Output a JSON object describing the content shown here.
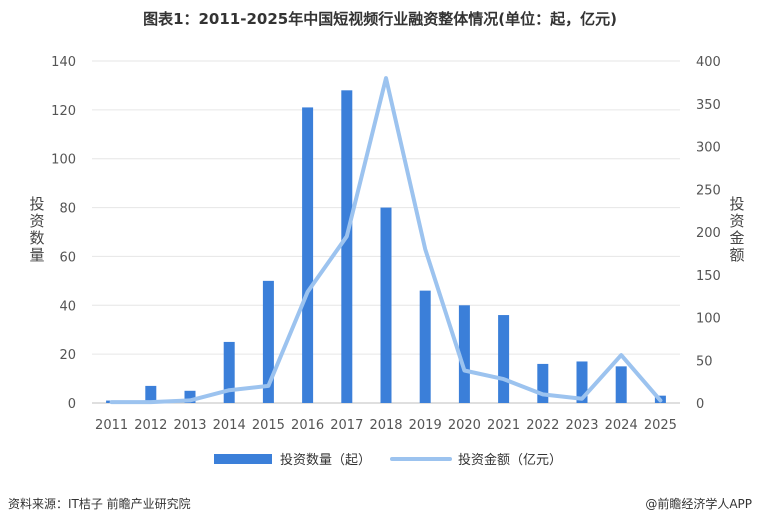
{
  "title": "图表1：2011-2025年中国短视频行业融资整体情况(单位：起，亿元)",
  "footer": {
    "source": "资料来源：IT桔子 前瞻产业研究院",
    "brand": "@前瞻经济学人APP"
  },
  "colors": {
    "bar": "#3b7fd9",
    "line": "#9cc3ef",
    "grid": "#e6e6e6",
    "axis_text": "#555555"
  },
  "chart_data": {
    "type": "bar",
    "categories": [
      "2011",
      "2012",
      "2013",
      "2014",
      "2015",
      "2016",
      "2017",
      "2018",
      "2019",
      "2020",
      "2021",
      "2022",
      "2023",
      "2024",
      "2025"
    ],
    "series": [
      {
        "name": "投资数量（起）",
        "type": "bar",
        "axis": "left",
        "values": [
          1,
          7,
          5,
          25,
          50,
          121,
          128,
          80,
          46,
          40,
          36,
          16,
          17,
          15,
          3
        ]
      },
      {
        "name": "投资金额（亿元）",
        "type": "line",
        "axis": "right",
        "values": [
          1,
          1,
          3,
          15,
          20,
          130,
          195,
          380,
          180,
          38,
          28,
          10,
          5,
          56,
          3
        ]
      }
    ],
    "ylabel": "投资数量",
    "y2label": "投资金额",
    "ylim": [
      0,
      140
    ],
    "y2lim": [
      0,
      400
    ],
    "yticks": [
      0,
      20,
      40,
      60,
      80,
      100,
      120,
      140
    ],
    "y2ticks": [
      0,
      50,
      100,
      150,
      200,
      250,
      300,
      350,
      400
    ],
    "grid": true,
    "legend_position": "bottom"
  }
}
